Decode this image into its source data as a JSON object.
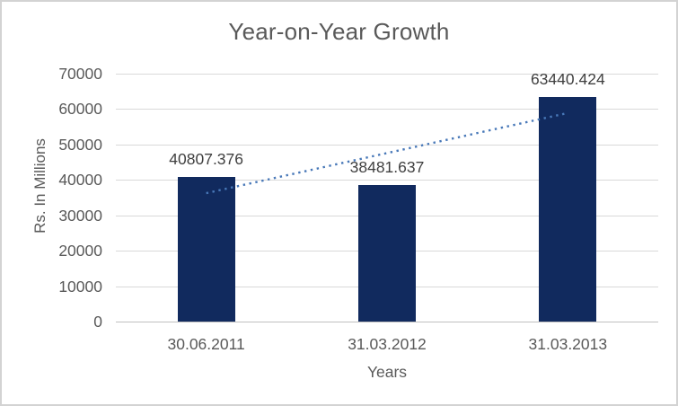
{
  "chart": {
    "background": "#ffffff",
    "border_color": "#d3d3d3"
  },
  "chart_data": {
    "type": "bar",
    "title": "Year-on-Year Growth",
    "categories": [
      "30.06.2011",
      "31.03.2012",
      "31.03.2013"
    ],
    "values": [
      40807.376,
      38481.637,
      63440.424
    ],
    "data_labels": [
      "40807.376",
      "38481.637",
      "63440.424"
    ],
    "xlabel": "Years",
    "ylabel": "Rs. In Millions",
    "ylim": [
      0,
      70000
    ],
    "yticks": [
      0,
      10000,
      20000,
      30000,
      40000,
      50000,
      60000,
      70000
    ],
    "ytick_labels": [
      "0",
      "10000",
      "20000",
      "30000",
      "40000",
      "50000",
      "60000",
      "70000"
    ],
    "grid": true,
    "legend": "none",
    "bar_color": "#112a5e",
    "data_label_color": "#404040",
    "axis_text_color": "#595959",
    "title_color": "#595959",
    "gridline_color": "#d9d9d9",
    "axis_line_color": "#bfbfbf",
    "trendline": {
      "type": "linear",
      "style": "dotted",
      "color": "#4878b8",
      "start_value": 36259.95,
      "end_value": 58892.99
    }
  }
}
